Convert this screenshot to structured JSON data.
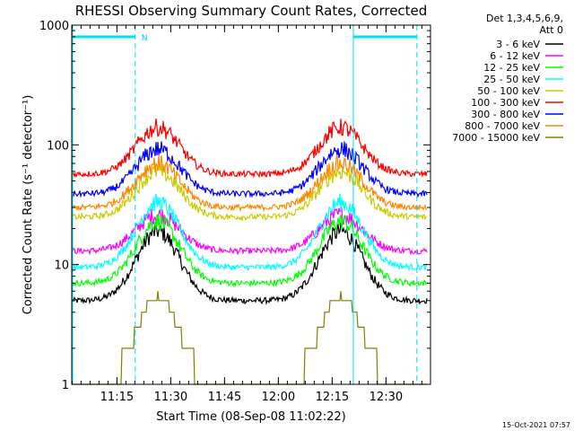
{
  "chart_data": {
    "type": "line",
    "title": "RHESSI Observing Summary Count Rates, Corrected",
    "xlabel": "Start Time (08-Sep-08 11:02:22)",
    "ylabel": "Corrected Count Rate (s⁻¹ detector⁻¹)",
    "y_scale": "log",
    "ylim": [
      1,
      1000
    ],
    "xlim_minutes": [
      0,
      100
    ],
    "x_ticks": [
      "11:15",
      "11:30",
      "11:45",
      "12:00",
      "12:15",
      "12:30"
    ],
    "x_tick_minutes": [
      12.6,
      27.6,
      42.6,
      57.6,
      72.6,
      87.6
    ],
    "y_ticks": [
      "1",
      "10",
      "100",
      "1000"
    ],
    "y_tick_values": [
      1,
      10,
      100,
      1000
    ],
    "legend_header": [
      "Det 1,3,4,5,6,9,",
      "Att 0"
    ],
    "legend_position": "right",
    "footer_date": "15-Oct-2021 07:57",
    "night_label": "N",
    "night_bars": [
      [
        0,
        17.7
      ],
      [
        78.5,
        96.2
      ]
    ],
    "night_markers_minutes": [
      17.7,
      78.5,
      96.2
    ],
    "peak_minutes": [
      24,
      75
    ],
    "series": [
      {
        "name": "3 - 6 keV",
        "color": "#000000",
        "base": 5.0,
        "peak": 19
      },
      {
        "name": "6 - 12 keV",
        "color": "#ff00ff",
        "base": 13.0,
        "peak": 26
      },
      {
        "name": "12 - 25 keV",
        "color": "#00ff00",
        "base": 7.0,
        "peak": 23
      },
      {
        "name": "25 - 50 keV",
        "color": "#00ffff",
        "base": 9.5,
        "peak": 33
      },
      {
        "name": "50 - 100 keV",
        "color": "#cccc00",
        "base": 25,
        "peak": 60
      },
      {
        "name": "100 - 300 keV",
        "color": "#ff0000",
        "base": 57,
        "peak": 140
      },
      {
        "name": "300 - 800 keV",
        "color": "#0000ff",
        "base": 39,
        "peak": 92
      },
      {
        "name": "800 - 7000 keV",
        "color": "#ff8800",
        "base": 30,
        "peak": 70
      },
      {
        "name": "7000 - 15000 keV",
        "color": "#808000",
        "base": 1.0,
        "peak": 5.5
      }
    ]
  }
}
